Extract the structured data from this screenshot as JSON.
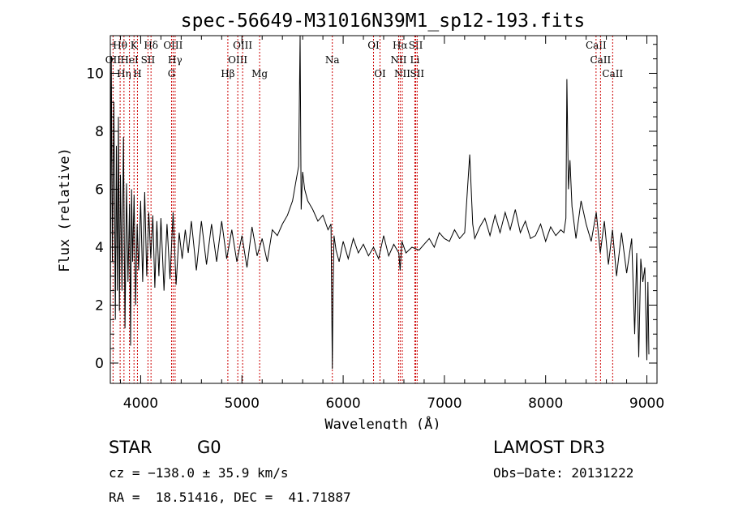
{
  "chart_data": {
    "type": "line",
    "title": "spec-56649-M31016N39M1_sp12-193.fits",
    "xlabel": "Wavelength (Å)",
    "ylabel": "Flux (relative)",
    "xlim": [
      3700,
      9100
    ],
    "ylim": [
      -0.7,
      11.3
    ],
    "x_ticks": [
      4000,
      5000,
      6000,
      7000,
      8000,
      9000
    ],
    "x_tick_labels": [
      "4000",
      "5000",
      "6000",
      "7000",
      "8000",
      "9000"
    ],
    "y_ticks": [
      0,
      2,
      4,
      6,
      8,
      10
    ],
    "y_tick_labels": [
      "0",
      "2",
      "4",
      "6",
      "8",
      "10"
    ],
    "grid": false,
    "line_color": "#000000",
    "marker_line_color": "#cc0000",
    "spectrum": {
      "x": [
        3700,
        3710,
        3720,
        3735,
        3750,
        3760,
        3770,
        3780,
        3790,
        3800,
        3815,
        3830,
        3845,
        3860,
        3875,
        3890,
        3900,
        3910,
        3920,
        3935,
        3950,
        3965,
        3980,
        4000,
        4020,
        4040,
        4060,
        4080,
        4100,
        4120,
        4140,
        4160,
        4180,
        4200,
        4230,
        4260,
        4290,
        4320,
        4350,
        4380,
        4410,
        4440,
        4470,
        4500,
        4550,
        4600,
        4650,
        4700,
        4750,
        4800,
        4850,
        4900,
        4950,
        5000,
        5050,
        5100,
        5150,
        5200,
        5250,
        5300,
        5350,
        5400,
        5450,
        5500,
        5530,
        5560,
        5575,
        5585,
        5600,
        5620,
        5650,
        5700,
        5750,
        5800,
        5850,
        5880,
        5893,
        5900,
        5910,
        5930,
        5960,
        6000,
        6050,
        6100,
        6150,
        6200,
        6250,
        6300,
        6350,
        6400,
        6450,
        6500,
        6550,
        6563,
        6580,
        6620,
        6680,
        6750,
        6800,
        6850,
        6900,
        6950,
        7000,
        7050,
        7100,
        7150,
        7200,
        7250,
        7280,
        7300,
        7350,
        7400,
        7450,
        7500,
        7550,
        7600,
        7650,
        7700,
        7750,
        7800,
        7850,
        7900,
        7950,
        8000,
        8050,
        8100,
        8150,
        8180,
        8200,
        8210,
        8225,
        8240,
        8260,
        8300,
        8350,
        8400,
        8450,
        8500,
        8540,
        8580,
        8620,
        8660,
        8700,
        8750,
        8800,
        8850,
        8880,
        8900,
        8920,
        8940,
        8960,
        8980,
        9000,
        9010,
        9020
      ],
      "y": [
        1.0,
        10.6,
        3.5,
        9.0,
        1.5,
        7.5,
        2.5,
        8.5,
        1.8,
        6.5,
        2.5,
        7.8,
        1.2,
        6.2,
        2.8,
        5.5,
        0.6,
        6.0,
        3.5,
        5.8,
        2.0,
        4.8,
        3.2,
        5.6,
        2.8,
        5.9,
        3.0,
        5.2,
        3.6,
        5.1,
        2.6,
        4.9,
        3.0,
        5.0,
        2.5,
        4.8,
        2.9,
        5.2,
        2.7,
        4.5,
        3.6,
        4.6,
        3.8,
        4.9,
        3.2,
        4.9,
        3.4,
        4.8,
        3.5,
        4.9,
        3.6,
        4.6,
        3.5,
        4.4,
        3.3,
        4.7,
        3.7,
        4.3,
        3.5,
        4.6,
        4.4,
        4.8,
        5.1,
        5.6,
        6.2,
        6.8,
        11.3,
        5.3,
        6.6,
        6.0,
        5.6,
        5.3,
        4.9,
        5.1,
        4.6,
        4.8,
        -0.2,
        2.5,
        4.4,
        3.9,
        3.5,
        4.2,
        3.6,
        4.3,
        3.8,
        4.1,
        3.7,
        4.0,
        3.6,
        4.4,
        3.7,
        4.1,
        3.8,
        3.2,
        4.2,
        3.8,
        4.0,
        3.9,
        4.1,
        4.3,
        4.0,
        4.5,
        4.3,
        4.2,
        4.6,
        4.3,
        4.5,
        7.2,
        4.8,
        4.3,
        4.7,
        5.0,
        4.4,
        5.1,
        4.5,
        5.2,
        4.6,
        5.3,
        4.5,
        4.9,
        4.3,
        4.4,
        4.8,
        4.2,
        4.7,
        4.4,
        4.6,
        4.5,
        5.0,
        9.8,
        6.0,
        7.0,
        5.4,
        4.3,
        5.6,
        4.8,
        4.2,
        5.2,
        3.8,
        4.9,
        3.4,
        4.6,
        3.0,
        4.5,
        3.1,
        4.3,
        1.0,
        3.8,
        0.2,
        3.6,
        2.8,
        3.3,
        0.1,
        2.8,
        0.3
      ]
    },
    "line_markers": [
      {
        "label": "Hθ",
        "wavelength": 3797,
        "row": 1
      },
      {
        "label": "OII",
        "wavelength": 3727,
        "row": 2
      },
      {
        "label": "Hη",
        "wavelength": 3835,
        "row": 3
      },
      {
        "label": "HeI",
        "wavelength": 3889,
        "row": 2
      },
      {
        "label": "K",
        "wavelength": 3934,
        "row": 1
      },
      {
        "label": "H",
        "wavelength": 3968,
        "row": 3
      },
      {
        "label": "SII",
        "wavelength": 4072,
        "row": 2
      },
      {
        "label": "Hδ",
        "wavelength": 4102,
        "row": 1
      },
      {
        "label": "G",
        "wavelength": 4305,
        "row": 3
      },
      {
        "label": "OIII",
        "wavelength": 4320,
        "row": 1
      },
      {
        "label": "Hγ",
        "wavelength": 4340,
        "row": 2
      },
      {
        "label": "Hβ",
        "wavelength": 4861,
        "row": 3
      },
      {
        "label": "OIII",
        "wavelength": 4959,
        "row": 2
      },
      {
        "label": "OIII",
        "wavelength": 5007,
        "row": 1
      },
      {
        "label": "Mg",
        "wavelength": 5175,
        "row": 3
      },
      {
        "label": "Na",
        "wavelength": 5893,
        "row": 2
      },
      {
        "label": "OI",
        "wavelength": 6300,
        "row": 1
      },
      {
        "label": "OI",
        "wavelength": 6364,
        "row": 3
      },
      {
        "label": "NII",
        "wavelength": 6548,
        "row": 2
      },
      {
        "label": "NII",
        "wavelength": 6584,
        "row": 3
      },
      {
        "label": "Hα",
        "wavelength": 6563,
        "row": 1
      },
      {
        "label": "SII",
        "wavelength": 6717,
        "row": 1
      },
      {
        "label": "Li",
        "wavelength": 6708,
        "row": 2
      },
      {
        "label": "SII",
        "wavelength": 6731,
        "row": 3
      },
      {
        "label": "CaII",
        "wavelength": 8498,
        "row": 1
      },
      {
        "label": "CaII",
        "wavelength": 8542,
        "row": 2
      },
      {
        "label": "CaII",
        "wavelength": 8662,
        "row": 3
      }
    ]
  },
  "info": {
    "object_type": "STAR",
    "subclass": "G0",
    "survey": "LAMOST DR3",
    "velocity": "cz = −138.0 ± 35.9 km/s",
    "obs_date": "Obs−Date: 20131222",
    "coords": "RA =  18.51416, DEC =  41.71887"
  }
}
